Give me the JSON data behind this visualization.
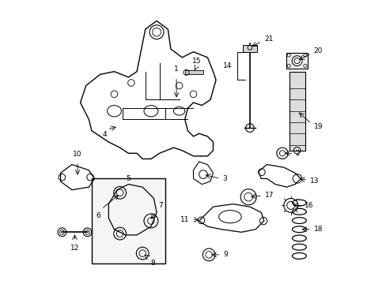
{
  "bg_color": "#ffffff",
  "line_color": "#000000",
  "font_size": 6.5
}
